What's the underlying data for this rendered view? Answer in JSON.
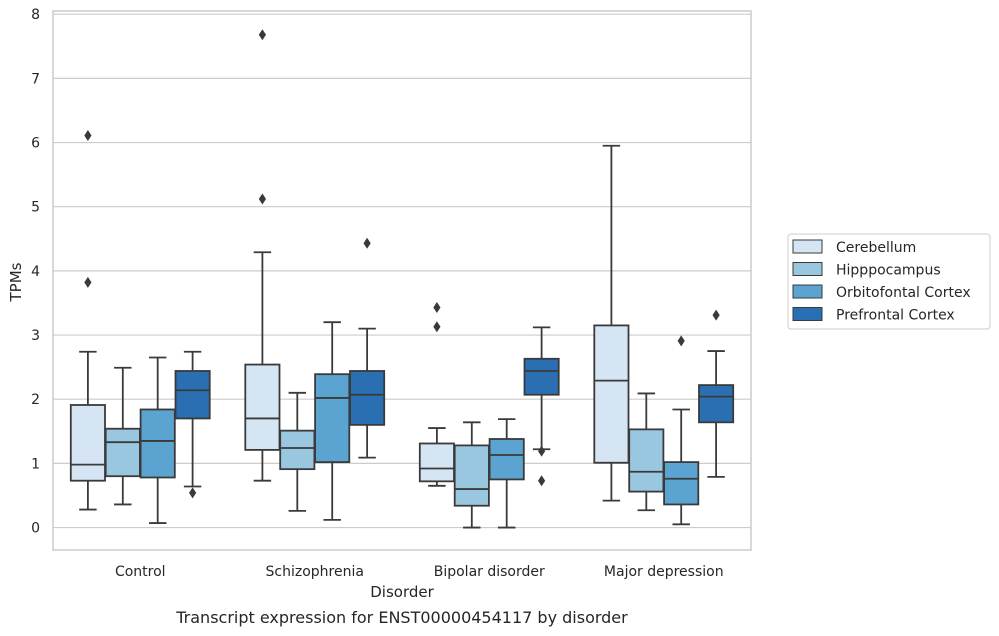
{
  "chart_data": {
    "type": "box",
    "title": "Transcript expression for ENST00000454117 by disorder",
    "xlabel": "Disorder",
    "ylabel": "TPMs",
    "ylim": [
      -0.35,
      8.05
    ],
    "yticks": [
      0,
      1,
      2,
      3,
      4,
      5,
      6,
      7,
      8
    ],
    "grid": true,
    "legend_position": "right",
    "categories": [
      "Control",
      "Schizophrenia",
      "Bipolar disorder",
      "Major depression"
    ],
    "series": [
      {
        "name": "Cerebellum",
        "color": "#d6e5f4",
        "boxes": [
          {
            "whisker_low": 0.28,
            "q1": 0.73,
            "median": 0.98,
            "q3": 1.91,
            "whisker_high": 2.74,
            "outliers": [
              3.82,
              6.11
            ]
          },
          {
            "whisker_low": 0.73,
            "q1": 1.21,
            "median": 1.7,
            "q3": 2.54,
            "whisker_high": 4.29,
            "outliers": [
              5.12,
              7.68
            ]
          },
          {
            "whisker_low": 0.65,
            "q1": 0.72,
            "median": 0.92,
            "q3": 1.31,
            "whisker_high": 1.55,
            "outliers": [
              3.13,
              3.43
            ]
          },
          {
            "whisker_low": 0.42,
            "q1": 1.01,
            "median": 2.29,
            "q3": 3.15,
            "whisker_high": 5.95,
            "outliers": []
          }
        ]
      },
      {
        "name": "Hipppocampus",
        "color": "#9ac7e0",
        "boxes": [
          {
            "whisker_low": 0.36,
            "q1": 0.8,
            "median": 1.33,
            "q3": 1.54,
            "whisker_high": 2.49,
            "outliers": []
          },
          {
            "whisker_low": 0.26,
            "q1": 0.91,
            "median": 1.24,
            "q3": 1.51,
            "whisker_high": 2.1,
            "outliers": []
          },
          {
            "whisker_low": 0.0,
            "q1": 0.34,
            "median": 0.6,
            "q3": 1.28,
            "whisker_high": 1.64,
            "outliers": []
          },
          {
            "whisker_low": 0.27,
            "q1": 0.56,
            "median": 0.87,
            "q3": 1.53,
            "whisker_high": 2.09,
            "outliers": []
          }
        ]
      },
      {
        "name": "Orbitofontal Cortex",
        "color": "#5ba3d0",
        "boxes": [
          {
            "whisker_low": 0.07,
            "q1": 0.78,
            "median": 1.35,
            "q3": 1.84,
            "whisker_high": 2.65,
            "outliers": []
          },
          {
            "whisker_low": 0.12,
            "q1": 1.02,
            "median": 2.02,
            "q3": 2.39,
            "whisker_high": 3.2,
            "outliers": []
          },
          {
            "whisker_low": 0.0,
            "q1": 0.75,
            "median": 1.13,
            "q3": 1.38,
            "whisker_high": 1.69,
            "outliers": []
          },
          {
            "whisker_low": 0.05,
            "q1": 0.36,
            "median": 0.76,
            "q3": 1.02,
            "whisker_high": 1.84,
            "outliers": [
              2.91
            ]
          }
        ]
      },
      {
        "name": "Prefrontal Cortex",
        "color": "#2a6fb1",
        "boxes": [
          {
            "whisker_low": 0.64,
            "q1": 1.7,
            "median": 2.14,
            "q3": 2.44,
            "whisker_high": 2.74,
            "outliers": [
              0.54
            ]
          },
          {
            "whisker_low": 1.09,
            "q1": 1.6,
            "median": 2.07,
            "q3": 2.44,
            "whisker_high": 3.1,
            "outliers": [
              4.43
            ]
          },
          {
            "whisker_low": 1.22,
            "q1": 2.07,
            "median": 2.44,
            "q3": 2.63,
            "whisker_high": 3.12,
            "outliers": [
              0.73,
              1.19
            ]
          },
          {
            "whisker_low": 0.79,
            "q1": 1.64,
            "median": 2.04,
            "q3": 2.22,
            "whisker_high": 2.75,
            "outliers": [
              3.31
            ]
          }
        ]
      }
    ]
  }
}
